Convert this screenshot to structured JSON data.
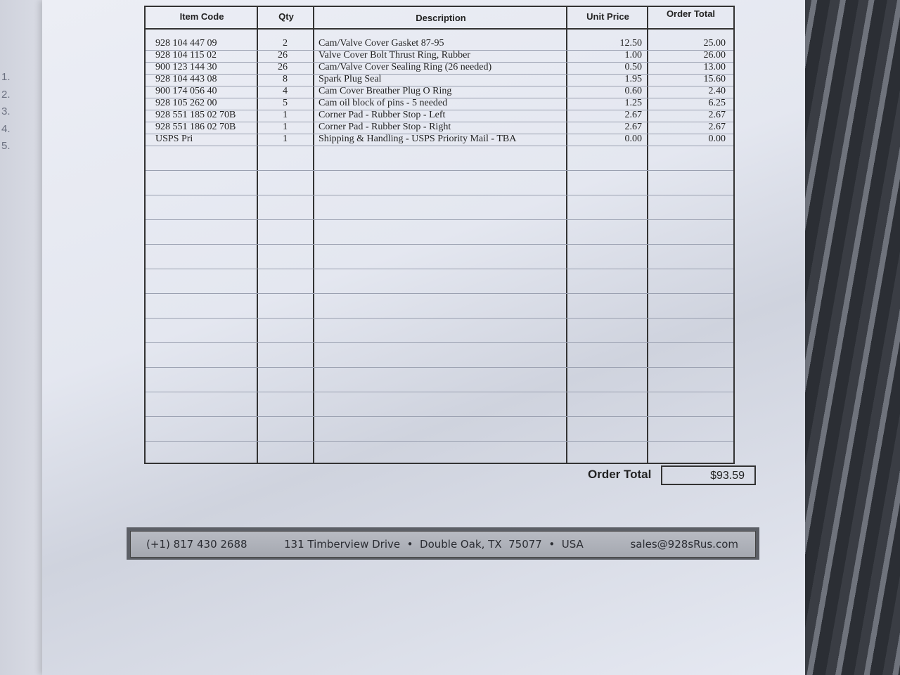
{
  "margin_numbers": [
    "1.",
    "2.",
    "3.",
    "4.",
    "5."
  ],
  "table": {
    "headers": [
      "Item Code",
      "Qty",
      "Description",
      "Unit Price",
      "Order Total"
    ],
    "rows": [
      {
        "code": "928 104 447 09",
        "qty": "2",
        "desc": "Cam/Valve Cover Gasket 87-95",
        "unit": "12.50",
        "total": "25.00"
      },
      {
        "code": "928 104 115 02",
        "qty": "26",
        "desc": "Valve Cover Bolt Thrust Ring, Rubber",
        "unit": "1.00",
        "total": "26.00"
      },
      {
        "code": "900 123 144 30",
        "qty": "26",
        "desc": "Cam/Valve Cover Sealing Ring (26 needed)",
        "unit": "0.50",
        "total": "13.00"
      },
      {
        "code": "928 104 443 08",
        "qty": "8",
        "desc": "Spark Plug Seal",
        "unit": "1.95",
        "total": "15.60"
      },
      {
        "code": "900 174 056 40",
        "qty": "4",
        "desc": "Cam Cover Breather Plug O Ring",
        "unit": "0.60",
        "total": "2.40"
      },
      {
        "code": "928 105 262 00",
        "qty": "5",
        "desc": "Cam oil block of pins - 5 needed",
        "unit": "1.25",
        "total": "6.25"
      },
      {
        "code": "928 551 185 02 70B",
        "qty": "1",
        "desc": "Corner Pad - Rubber Stop - Left",
        "unit": "2.67",
        "total": "2.67"
      },
      {
        "code": "928 551 186 02 70B",
        "qty": "1",
        "desc": "Corner Pad - Rubber Stop - Right",
        "unit": "2.67",
        "total": "2.67"
      },
      {
        "code": "USPS Pri",
        "qty": "1",
        "desc": "Shipping & Handling - USPS Priority Mail - TBA",
        "unit": "0.00",
        "total": "0.00"
      }
    ]
  },
  "order_total": {
    "label": "Order Total",
    "value": "$93.59"
  },
  "footer": {
    "phone": "(+1) 817 430 2688",
    "address": "131 Timberview Drive  •  Double Oak, TX  75077  •  USA",
    "email": "sales@928sRus.com"
  }
}
